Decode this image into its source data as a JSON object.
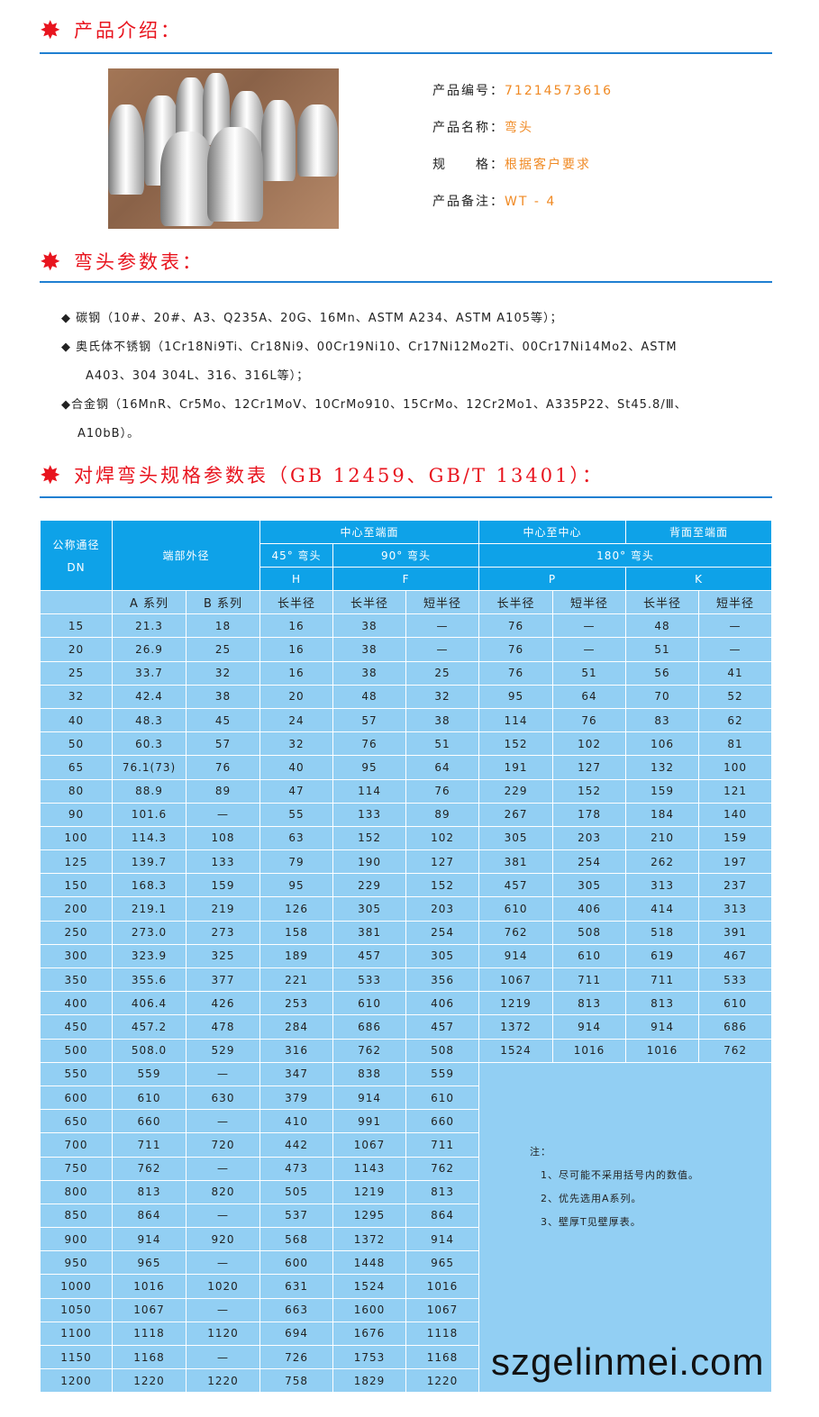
{
  "sections": {
    "intro": "产品介绍：",
    "params": "弯头参数表：",
    "spec": "对焊弯头规格参数表（GB 12459、GB/T 13401）："
  },
  "product": {
    "code_label": "产品编号：",
    "code": "71214573616",
    "name_label": "产品名称：",
    "name": "弯头",
    "spec_label": "规　　格：",
    "spec": "根据客户要求",
    "note_label": "产品备注：",
    "note": "WT - 4"
  },
  "materials": [
    "◆ 碳钢（10#、20#、A3、Q235A、20G、16Mn、ASTM A234、ASTM A105等）；",
    "◆ 奥氏体不锈钢（1Cr18Ni9Ti、Cr18Ni9、00Cr19Ni10、Cr17Ni12Mo2Ti、00Cr17Ni14Mo2、ASTM",
    "A403、304 304L、316、316L等）；",
    "◆合金钢（16MnR、Cr5Mo、12Cr1MoV、10CrMo910、15CrMo、12Cr2Mo1、A335P22、St45.8/Ⅲ、",
    "A10bB）。"
  ],
  "table": {
    "h_dn": "公称通径",
    "h_dn2": "DN",
    "h_od": "端部外径",
    "h_c2e": "中心至端面",
    "h_c2c": "中心至中心",
    "h_b2e": "背面至端面",
    "h_45": "45° 弯头",
    "h_90": "90° 弯头",
    "h_180": "180° 弯头",
    "h_H": "H",
    "h_F": "F",
    "h_P": "P",
    "h_K": "K",
    "sub": [
      "",
      "A 系列",
      "B 系列",
      "长半径",
      "长半径",
      "短半径",
      "长半径",
      "短半径",
      "长半径",
      "短半径"
    ],
    "rows_full": [
      [
        "15",
        "21.3",
        "18",
        "16",
        "38",
        "—",
        "76",
        "—",
        "48",
        "—"
      ],
      [
        "20",
        "26.9",
        "25",
        "16",
        "38",
        "—",
        "76",
        "—",
        "51",
        "—"
      ],
      [
        "25",
        "33.7",
        "32",
        "16",
        "38",
        "25",
        "76",
        "51",
        "56",
        "41"
      ],
      [
        "32",
        "42.4",
        "38",
        "20",
        "48",
        "32",
        "95",
        "64",
        "70",
        "52"
      ],
      [
        "40",
        "48.3",
        "45",
        "24",
        "57",
        "38",
        "114",
        "76",
        "83",
        "62"
      ],
      [
        "50",
        "60.3",
        "57",
        "32",
        "76",
        "51",
        "152",
        "102",
        "106",
        "81"
      ],
      [
        "65",
        "76.1(73)",
        "76",
        "40",
        "95",
        "64",
        "191",
        "127",
        "132",
        "100"
      ],
      [
        "80",
        "88.9",
        "89",
        "47",
        "114",
        "76",
        "229",
        "152",
        "159",
        "121"
      ],
      [
        "90",
        "101.6",
        "—",
        "55",
        "133",
        "89",
        "267",
        "178",
        "184",
        "140"
      ],
      [
        "100",
        "114.3",
        "108",
        "63",
        "152",
        "102",
        "305",
        "203",
        "210",
        "159"
      ],
      [
        "125",
        "139.7",
        "133",
        "79",
        "190",
        "127",
        "381",
        "254",
        "262",
        "197"
      ],
      [
        "150",
        "168.3",
        "159",
        "95",
        "229",
        "152",
        "457",
        "305",
        "313",
        "237"
      ],
      [
        "200",
        "219.1",
        "219",
        "126",
        "305",
        "203",
        "610",
        "406",
        "414",
        "313"
      ],
      [
        "250",
        "273.0",
        "273",
        "158",
        "381",
        "254",
        "762",
        "508",
        "518",
        "391"
      ],
      [
        "300",
        "323.9",
        "325",
        "189",
        "457",
        "305",
        "914",
        "610",
        "619",
        "467"
      ],
      [
        "350",
        "355.6",
        "377",
        "221",
        "533",
        "356",
        "1067",
        "711",
        "711",
        "533"
      ],
      [
        "400",
        "406.4",
        "426",
        "253",
        "610",
        "406",
        "1219",
        "813",
        "813",
        "610"
      ],
      [
        "450",
        "457.2",
        "478",
        "284",
        "686",
        "457",
        "1372",
        "914",
        "914",
        "686"
      ],
      [
        "500",
        "508.0",
        "529",
        "316",
        "762",
        "508",
        "1524",
        "1016",
        "1016",
        "762"
      ]
    ],
    "rows_short": [
      [
        "550",
        "559",
        "—",
        "347",
        "838",
        "559"
      ],
      [
        "600",
        "610",
        "630",
        "379",
        "914",
        "610"
      ],
      [
        "650",
        "660",
        "—",
        "410",
        "991",
        "660"
      ],
      [
        "700",
        "711",
        "720",
        "442",
        "1067",
        "711"
      ],
      [
        "750",
        "762",
        "—",
        "473",
        "1143",
        "762"
      ],
      [
        "800",
        "813",
        "820",
        "505",
        "1219",
        "813"
      ],
      [
        "850",
        "864",
        "—",
        "537",
        "1295",
        "864"
      ],
      [
        "900",
        "914",
        "920",
        "568",
        "1372",
        "914"
      ],
      [
        "950",
        "965",
        "—",
        "600",
        "1448",
        "965"
      ],
      [
        "1000",
        "1016",
        "1020",
        "631",
        "1524",
        "1016"
      ],
      [
        "1050",
        "1067",
        "—",
        "663",
        "1600",
        "1067"
      ],
      [
        "1100",
        "1118",
        "1120",
        "694",
        "1676",
        "1118"
      ],
      [
        "1150",
        "1168",
        "—",
        "726",
        "1753",
        "1168"
      ],
      [
        "1200",
        "1220",
        "1220",
        "758",
        "1829",
        "1220"
      ]
    ],
    "notes": [
      "注：",
      "1、尽可能不采用括号内的数值。",
      "2、优先选用A系列。",
      "3、壁厚T见壁厚表。"
    ]
  },
  "watermark": "szgelinmei.com",
  "colors": {
    "header": "#0ea2e8",
    "body": "#92cff3",
    "title": "#e8141e",
    "value": "#f08a24",
    "rule": "#1f7fd1"
  }
}
